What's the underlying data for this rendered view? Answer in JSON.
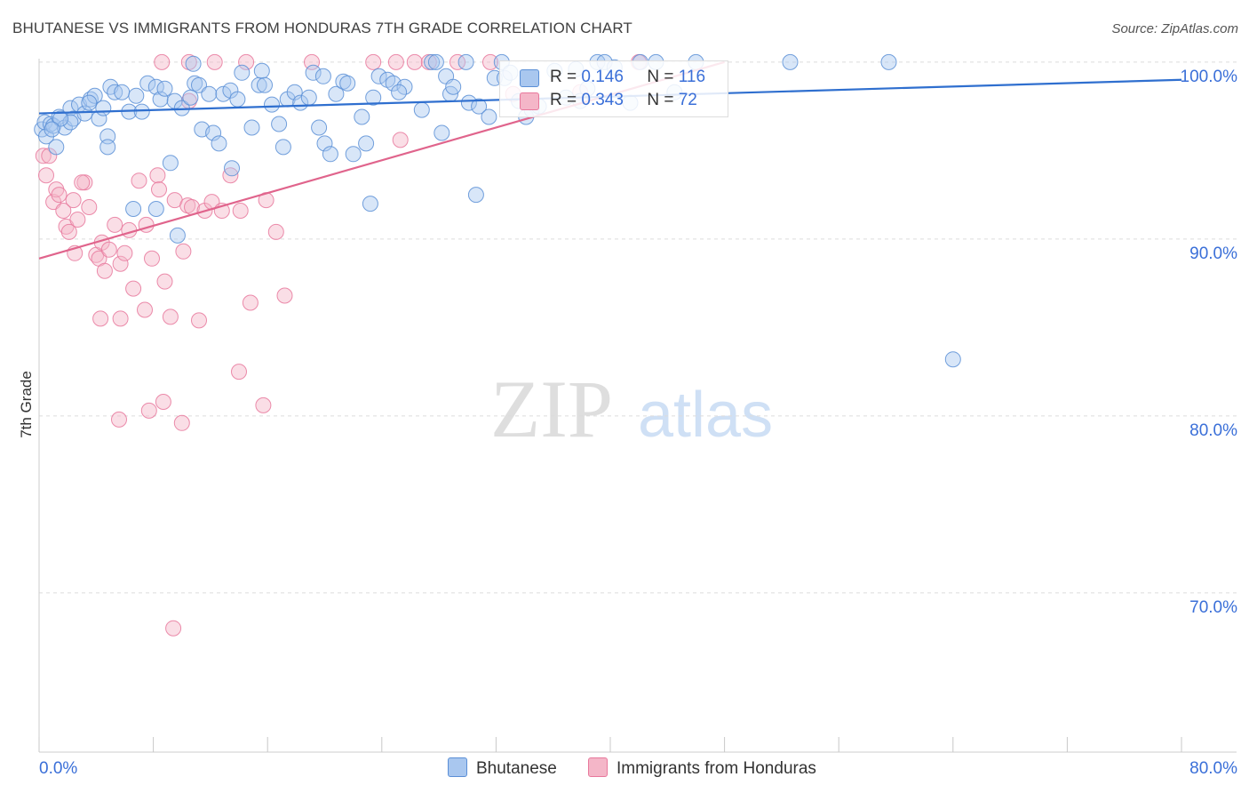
{
  "title": "BHUTANESE VS IMMIGRANTS FROM HONDURAS 7TH GRADE CORRELATION CHART",
  "source": "Source: ZipAtlas.com",
  "watermark": {
    "zip": "ZIP",
    "atlas": "atlas"
  },
  "legend": {
    "rows": [
      {
        "r_label": "R =",
        "r_value": "0.146",
        "n_label": "N =",
        "n_value": "116"
      },
      {
        "r_label": "R =",
        "r_value": "0.343",
        "n_label": "N =",
        "n_value": "72"
      }
    ]
  },
  "colors": {
    "blue_fill": "#a9c7ef",
    "blue_stroke": "#5b8fd6",
    "blue_line": "#2f6fcf",
    "pink_fill": "#f4b6c8",
    "pink_stroke": "#e8789c",
    "pink_line": "#e0648c",
    "tick_label": "#3a6fd8",
    "grid": "#dcdcdc"
  },
  "chart_data": {
    "type": "scatter",
    "title": "BHUTANESE VS IMMIGRANTS FROM HONDURAS 7TH GRADE CORRELATION CHART",
    "xlabel": "",
    "ylabel": "7th Grade",
    "xlim": [
      0,
      80
    ],
    "ylim": [
      61,
      101.5
    ],
    "x_tick_labels": [
      "0.0%",
      "80.0%"
    ],
    "y_ticks": [
      70,
      80,
      90,
      100
    ],
    "y_tick_labels": [
      "70.0%",
      "80.0%",
      "90.0%",
      "100.0%"
    ],
    "grid": "horizontal dashed",
    "series": [
      {
        "name": "Bhutanese",
        "R": 0.146,
        "N": 116,
        "trend": {
          "x": [
            0,
            80
          ],
          "y": [
            97.1,
            99.0
          ]
        },
        "points": [
          [
            0.2,
            96.2
          ],
          [
            0.4,
            96.6
          ],
          [
            0.5,
            95.8
          ],
          [
            0.8,
            96.5
          ],
          [
            1.0,
            96.4
          ],
          [
            1.2,
            95.2
          ],
          [
            1.4,
            96.9
          ],
          [
            1.8,
            96.3
          ],
          [
            2.2,
            97.4
          ],
          [
            2.4,
            96.8
          ],
          [
            2.8,
            97.6
          ],
          [
            3.2,
            97.1
          ],
          [
            3.6,
            97.9
          ],
          [
            3.9,
            98.1
          ],
          [
            4.2,
            96.8
          ],
          [
            4.5,
            97.4
          ],
          [
            4.8,
            95.8
          ],
          [
            5.0,
            98.6
          ],
          [
            5.3,
            98.3
          ],
          [
            5.8,
            98.3
          ],
          [
            6.3,
            97.2
          ],
          [
            6.8,
            98.1
          ],
          [
            7.2,
            97.2
          ],
          [
            7.6,
            98.8
          ],
          [
            8.2,
            98.6
          ],
          [
            8.5,
            97.9
          ],
          [
            8.8,
            98.5
          ],
          [
            9.2,
            94.3
          ],
          [
            9.5,
            97.8
          ],
          [
            10.0,
            97.4
          ],
          [
            10.6,
            98.0
          ],
          [
            10.8,
            99.9
          ],
          [
            10.9,
            98.8
          ],
          [
            11.2,
            98.7
          ],
          [
            11.4,
            96.2
          ],
          [
            11.9,
            98.2
          ],
          [
            12.2,
            96.0
          ],
          [
            12.6,
            95.4
          ],
          [
            12.9,
            98.2
          ],
          [
            13.4,
            98.4
          ],
          [
            13.9,
            97.9
          ],
          [
            14.2,
            99.4
          ],
          [
            14.9,
            96.3
          ],
          [
            15.4,
            98.7
          ],
          [
            15.6,
            99.5
          ],
          [
            15.8,
            98.7
          ],
          [
            16.3,
            97.6
          ],
          [
            16.8,
            96.5
          ],
          [
            17.1,
            95.2
          ],
          [
            17.4,
            97.9
          ],
          [
            17.9,
            98.3
          ],
          [
            18.3,
            97.7
          ],
          [
            18.9,
            98.0
          ],
          [
            19.2,
            99.4
          ],
          [
            19.6,
            96.3
          ],
          [
            19.9,
            99.2
          ],
          [
            20.0,
            95.4
          ],
          [
            20.4,
            94.8
          ],
          [
            20.8,
            98.2
          ],
          [
            21.3,
            98.9
          ],
          [
            21.6,
            98.8
          ],
          [
            22.0,
            94.8
          ],
          [
            22.6,
            96.9
          ],
          [
            22.9,
            95.4
          ],
          [
            23.4,
            98.0
          ],
          [
            23.8,
            99.2
          ],
          [
            24.4,
            99.0
          ],
          [
            24.8,
            98.8
          ],
          [
            25.6,
            98.6
          ],
          [
            26.8,
            97.3
          ],
          [
            27.5,
            100.0
          ],
          [
            27.8,
            100.0
          ],
          [
            28.2,
            96.0
          ],
          [
            28.5,
            99.2
          ],
          [
            28.8,
            98.2
          ],
          [
            29.0,
            98.6
          ],
          [
            29.9,
            100.0
          ],
          [
            30.1,
            97.7
          ],
          [
            30.8,
            97.5
          ],
          [
            31.5,
            96.9
          ],
          [
            31.9,
            99.1
          ],
          [
            32.4,
            100.0
          ],
          [
            32.6,
            99.1
          ],
          [
            33.0,
            99.4
          ],
          [
            33.6,
            97.8
          ],
          [
            34.1,
            96.9
          ],
          [
            34.5,
            97.3
          ],
          [
            35.0,
            97.5
          ],
          [
            36.1,
            99.5
          ],
          [
            36.9,
            98.0
          ],
          [
            37.6,
            99.6
          ],
          [
            37.9,
            97.8
          ],
          [
            38.4,
            98.5
          ],
          [
            39.1,
            100.0
          ],
          [
            39.6,
            100.0
          ],
          [
            40.3,
            99.7
          ],
          [
            41.4,
            97.7
          ],
          [
            42.1,
            100.0
          ],
          [
            43.2,
            100.0
          ],
          [
            44.5,
            98.3
          ],
          [
            46.0,
            100.0
          ],
          [
            52.6,
            100.0
          ],
          [
            59.5,
            100.0
          ],
          [
            64.0,
            83.2
          ],
          [
            4.8,
            95.2
          ],
          [
            9.7,
            90.2
          ],
          [
            8.2,
            91.7
          ],
          [
            6.6,
            91.7
          ],
          [
            23.2,
            92.0
          ],
          [
            30.6,
            92.5
          ],
          [
            13.5,
            94.0
          ],
          [
            2.2,
            96.6
          ],
          [
            3.5,
            97.7
          ],
          [
            25.2,
            98.3
          ],
          [
            1.5,
            96.8
          ],
          [
            0.9,
            96.2
          ]
        ]
      },
      {
        "name": "Immigrants from Honduras",
        "R": 0.343,
        "N": 72,
        "trend": {
          "x": [
            0,
            48
          ],
          "y": [
            88.9,
            100.0
          ]
        },
        "points": [
          [
            0.3,
            94.7
          ],
          [
            0.5,
            93.6
          ],
          [
            0.7,
            94.7
          ],
          [
            1.0,
            92.1
          ],
          [
            1.2,
            92.8
          ],
          [
            1.4,
            92.5
          ],
          [
            1.7,
            91.6
          ],
          [
            1.9,
            90.7
          ],
          [
            2.1,
            90.4
          ],
          [
            2.5,
            89.2
          ],
          [
            2.7,
            91.1
          ],
          [
            3.2,
            93.2
          ],
          [
            3.5,
            91.8
          ],
          [
            4.0,
            89.1
          ],
          [
            4.2,
            88.9
          ],
          [
            4.4,
            89.8
          ],
          [
            4.6,
            88.2
          ],
          [
            4.9,
            89.4
          ],
          [
            5.3,
            90.8
          ],
          [
            5.7,
            88.6
          ],
          [
            6.0,
            89.2
          ],
          [
            6.3,
            90.5
          ],
          [
            6.6,
            87.2
          ],
          [
            7.0,
            93.3
          ],
          [
            7.5,
            90.8
          ],
          [
            7.9,
            88.9
          ],
          [
            8.3,
            93.6
          ],
          [
            8.8,
            87.6
          ],
          [
            9.2,
            85.6
          ],
          [
            9.5,
            92.2
          ],
          [
            10.1,
            89.3
          ],
          [
            10.4,
            91.9
          ],
          [
            10.7,
            91.8
          ],
          [
            11.2,
            85.4
          ],
          [
            11.6,
            91.6
          ],
          [
            12.1,
            92.1
          ],
          [
            12.8,
            91.6
          ],
          [
            13.4,
            93.6
          ],
          [
            14.1,
            91.6
          ],
          [
            14.8,
            86.4
          ],
          [
            15.7,
            80.6
          ],
          [
            16.6,
            90.4
          ],
          [
            17.2,
            86.8
          ],
          [
            2.4,
            92.2
          ],
          [
            3.0,
            93.2
          ],
          [
            4.3,
            85.5
          ],
          [
            5.7,
            85.5
          ],
          [
            7.4,
            86.0
          ],
          [
            5.6,
            79.8
          ],
          [
            7.7,
            80.3
          ],
          [
            8.7,
            80.8
          ],
          [
            10.0,
            79.6
          ],
          [
            14.0,
            82.5
          ],
          [
            9.4,
            68.0
          ],
          [
            8.6,
            100.0
          ],
          [
            10.5,
            100.0
          ],
          [
            12.3,
            100.0
          ],
          [
            14.5,
            100.0
          ],
          [
            19.1,
            100.0
          ],
          [
            23.4,
            100.0
          ],
          [
            25.0,
            100.0
          ],
          [
            26.3,
            100.0
          ],
          [
            27.3,
            100.0
          ],
          [
            29.3,
            100.0
          ],
          [
            31.6,
            100.0
          ],
          [
            33.2,
            98.2
          ],
          [
            37.9,
            98.3
          ],
          [
            42.0,
            100.0
          ],
          [
            25.3,
            95.6
          ],
          [
            10.5,
            97.8
          ],
          [
            15.9,
            92.2
          ],
          [
            8.4,
            92.8
          ]
        ]
      }
    ]
  },
  "bottom_legend": [
    "Bhutanese",
    "Immigrants from Honduras"
  ]
}
